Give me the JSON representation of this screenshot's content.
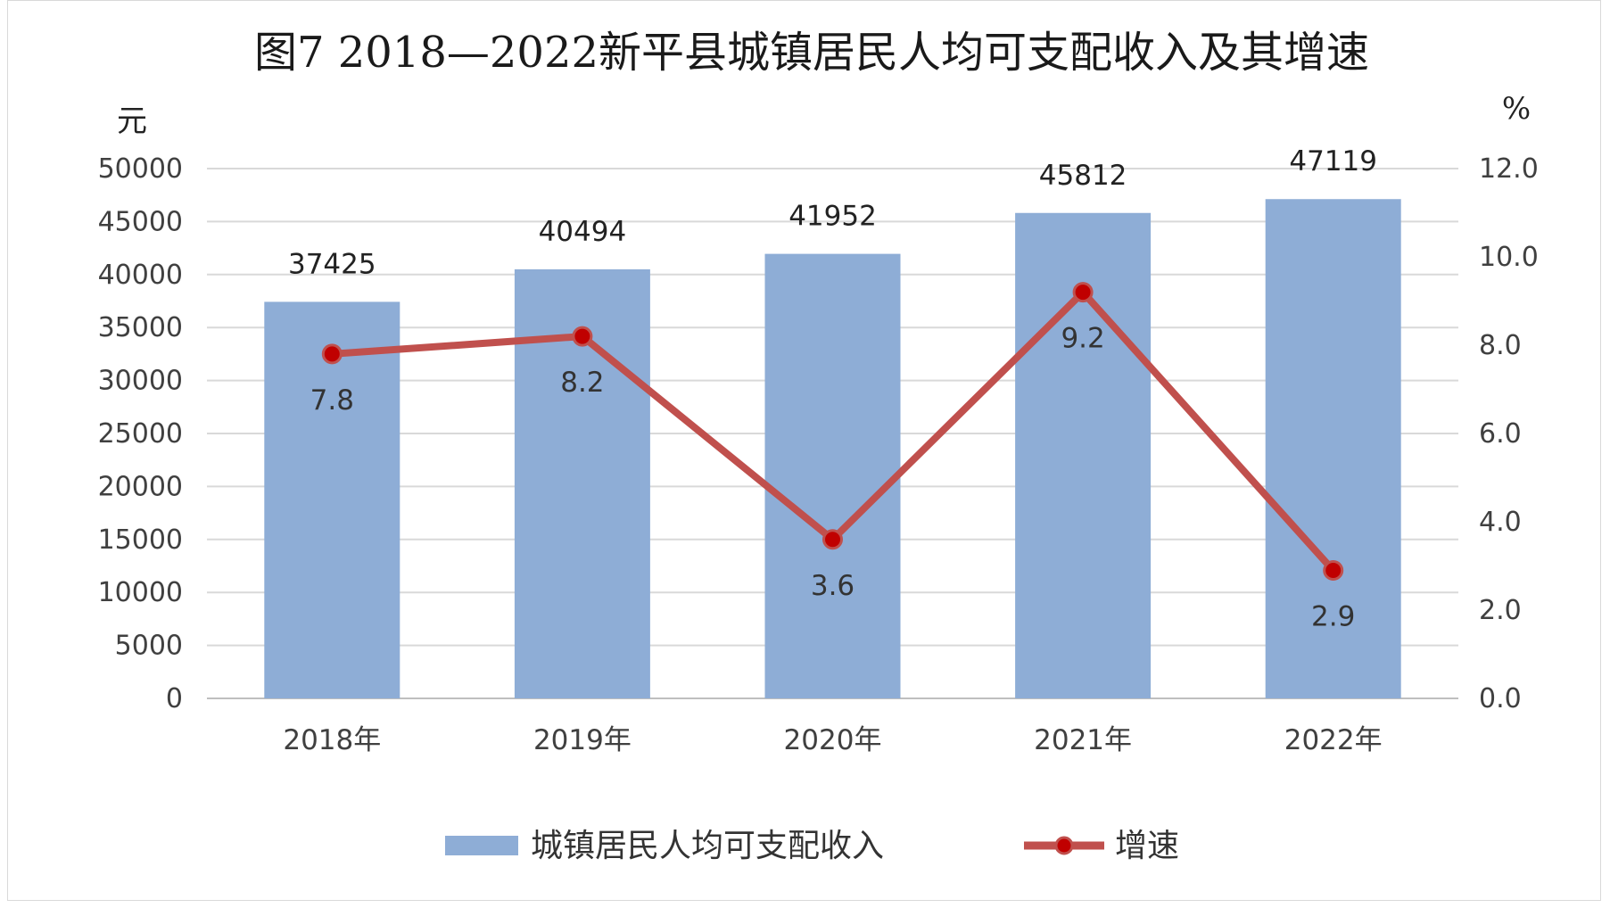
{
  "chart_data": {
    "type": "bar",
    "title": "图7  2018—2022新平县城镇居民人均可支配收入及其增速",
    "categories": [
      "2018年",
      "2019年",
      "2020年",
      "2021年",
      "2022年"
    ],
    "series": [
      {
        "name": "城镇居民人均可支配收入",
        "type": "bar",
        "axis": "left",
        "values": [
          37425,
          40494,
          41952,
          45812,
          47119
        ],
        "color": "#8eadd6"
      },
      {
        "name": "增速",
        "type": "line",
        "axis": "right",
        "values": [
          7.8,
          8.2,
          3.6,
          9.2,
          2.9
        ],
        "color": "#c0504d"
      }
    ],
    "y_left": {
      "unit": "元",
      "ylim": [
        0,
        50000
      ],
      "ticks": [
        "0",
        "5000",
        "10000",
        "15000",
        "20000",
        "25000",
        "30000",
        "35000",
        "40000",
        "45000",
        "50000"
      ]
    },
    "y_right": {
      "unit": "%",
      "ylim": [
        0,
        12
      ],
      "ticks": [
        "0.0",
        "2.0",
        "4.0",
        "6.0",
        "8.0",
        "10.0",
        "12.0"
      ]
    },
    "grid": true,
    "legend_position": "bottom"
  }
}
